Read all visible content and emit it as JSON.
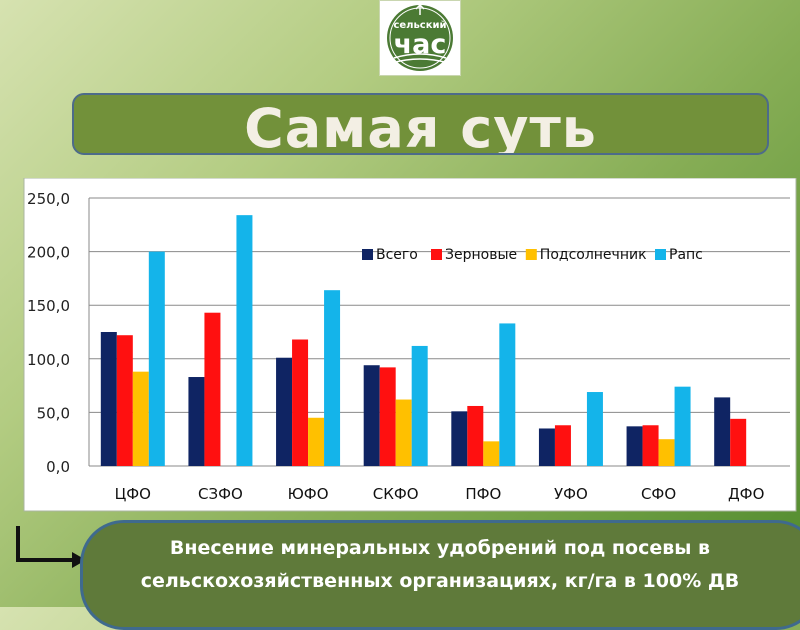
{
  "header": {
    "logo_top": "сельский",
    "logo_main": "час",
    "title": "Самая суть"
  },
  "chart_data": {
    "type": "bar",
    "categories": [
      "ЦФО",
      "СЗФО",
      "ЮФО",
      "СКФО",
      "ПФО",
      "УФО",
      "СФО",
      "ДФО"
    ],
    "series": [
      {
        "name": "Всего",
        "color": "#0f2463",
        "values": [
          125,
          83,
          101,
          94,
          51,
          35,
          37,
          64
        ]
      },
      {
        "name": "Зерновые",
        "color": "#ff1010",
        "values": [
          122,
          143,
          118,
          92,
          56,
          38,
          38,
          44
        ]
      },
      {
        "name": "Подсолнечник",
        "color": "#ffc000",
        "values": [
          88,
          null,
          45,
          62,
          23,
          null,
          25,
          null
        ]
      },
      {
        "name": "Рапс",
        "color": "#14b4ea",
        "values": [
          200,
          234,
          164,
          112,
          133,
          69,
          74,
          null
        ]
      }
    ],
    "y_ticks": [
      "0,0",
      "50,0",
      "100,0",
      "150,0",
      "200,0",
      "250,0"
    ],
    "ylim": [
      0,
      250
    ],
    "grid": true,
    "legend_position": "top-right"
  },
  "caption": {
    "line1": "Внесение минеральных удобрений под посевы в",
    "line2": "сельскохозяйственных организациях, кг/га в 100% ДВ"
  }
}
